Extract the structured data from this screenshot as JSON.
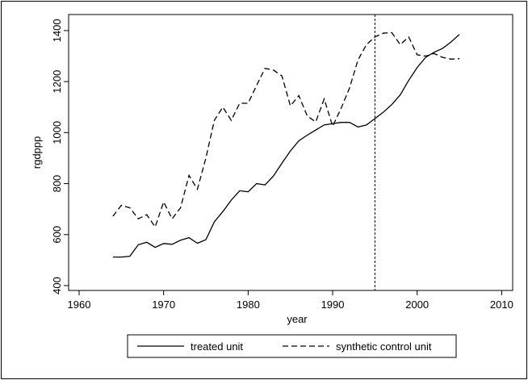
{
  "chart_data": {
    "type": "line",
    "x": [
      1964,
      1965,
      1966,
      1967,
      1968,
      1969,
      1970,
      1971,
      1972,
      1973,
      1974,
      1975,
      1976,
      1977,
      1978,
      1979,
      1980,
      1981,
      1982,
      1983,
      1984,
      1985,
      1986,
      1987,
      1988,
      1989,
      1990,
      1991,
      1992,
      1993,
      1994,
      1995,
      1996,
      1997,
      1998,
      1999,
      2000,
      2001,
      2002,
      2003,
      2004,
      2005
    ],
    "series": [
      {
        "name": "treated unit",
        "color": "#000000",
        "dash": "solid",
        "values": [
          512,
          512,
          515,
          560,
          570,
          550,
          565,
          562,
          578,
          588,
          566,
          580,
          650,
          690,
          735,
          772,
          768,
          800,
          795,
          830,
          880,
          928,
          968,
          990,
          1010,
          1030,
          1035,
          1040,
          1040,
          1022,
          1030,
          1055,
          1080,
          1110,
          1148,
          1205,
          1255,
          1295,
          1315,
          1330,
          1355,
          1385
        ]
      },
      {
        "name": "synthetic control unit",
        "color": "#000000",
        "dash": "dashed",
        "values": [
          672,
          715,
          705,
          662,
          678,
          630,
          728,
          662,
          705,
          832,
          778,
          900,
          1048,
          1100,
          1048,
          1115,
          1115,
          1185,
          1252,
          1245,
          1222,
          1105,
          1145,
          1065,
          1042,
          1132,
          1025,
          1095,
          1175,
          1285,
          1345,
          1375,
          1390,
          1392,
          1345,
          1375,
          1305,
          1300,
          1310,
          1295,
          1288,
          1290
        ]
      }
    ],
    "xlabel": "year",
    "ylabel": "rgdppp",
    "xlim": [
      1958.76,
      2011.3
    ],
    "ylim": [
      381,
      1463
    ],
    "xticks": [
      1960,
      1970,
      1980,
      1990,
      2000,
      2010
    ],
    "yticks": [
      400,
      600,
      800,
      1000,
      1200,
      1400
    ],
    "vline": 1995,
    "legend": "bottom"
  }
}
